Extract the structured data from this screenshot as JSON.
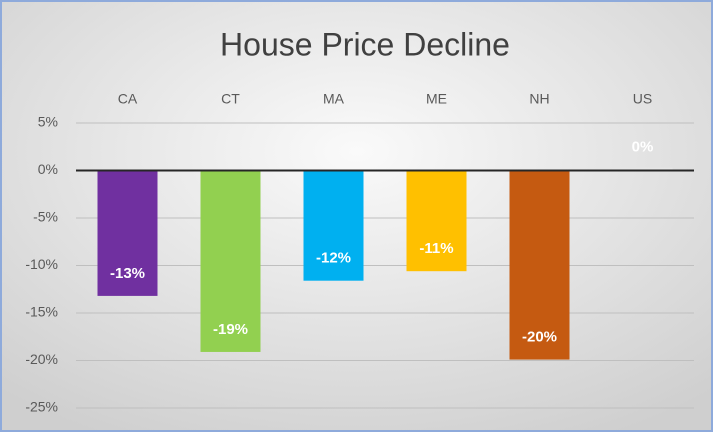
{
  "chart_data": {
    "type": "bar",
    "title": "House Price Decline",
    "categories": [
      "CA",
      "CT",
      "MA",
      "ME",
      "NH",
      "US"
    ],
    "values": [
      -13.2,
      -19.1,
      -11.6,
      -10.6,
      -19.9,
      0.3
    ],
    "value_labels": [
      "-13%",
      "-19%",
      "-12%",
      "-11%",
      "-20%",
      "0%"
    ],
    "colors": [
      "#7030a0",
      "#92d050",
      "#00b0f0",
      "#ffc000",
      "#c55a11",
      "#e6e6e6"
    ],
    "ylim": [
      -25,
      5
    ],
    "yticks": [
      {
        "value": 5,
        "label": "5%"
      },
      {
        "value": 0,
        "label": "0%"
      },
      {
        "value": -5,
        "label": "-5%"
      },
      {
        "value": -10,
        "label": "-10%"
      },
      {
        "value": -15,
        "label": "-15%"
      },
      {
        "value": -20,
        "label": "-20%"
      },
      {
        "value": -25,
        "label": "-25%"
      }
    ],
    "grid": true
  }
}
